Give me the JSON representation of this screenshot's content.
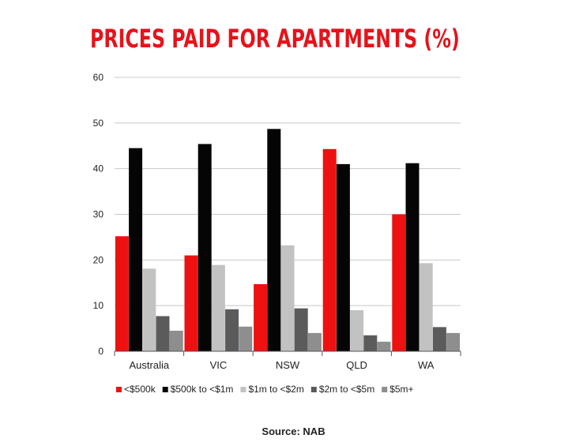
{
  "chart_data": {
    "type": "bar",
    "title": "PRICES PAID FOR APARTMENTS (%)",
    "categories": [
      "Australia",
      "VIC",
      "NSW",
      "QLD",
      "WA"
    ],
    "series": [
      {
        "name": "<$500k",
        "color": "#ee1111",
        "values": [
          25.2,
          21.0,
          14.7,
          44.3,
          30.0
        ]
      },
      {
        "name": "$500k to <$1m",
        "color": "#050505",
        "values": [
          44.5,
          45.4,
          48.7,
          41.0,
          41.2
        ]
      },
      {
        "name": "$1m to <$2m",
        "color": "#c2c2c2",
        "values": [
          18.1,
          18.9,
          23.2,
          9.0,
          19.3
        ]
      },
      {
        "name": "$2m to <$5m",
        "color": "#5b5b5b",
        "values": [
          7.7,
          9.2,
          9.4,
          3.5,
          5.3
        ]
      },
      {
        "name": "$5m+",
        "color": "#8e8e8e",
        "values": [
          4.5,
          5.4,
          4.0,
          2.1,
          4.0
        ]
      }
    ],
    "y_ticks": [
      "0",
      "10",
      "20",
      "30",
      "40",
      "50",
      "60"
    ],
    "ylim": [
      0,
      60
    ],
    "grid": true,
    "legend_position": "bottom",
    "source": "Source: NAB"
  }
}
